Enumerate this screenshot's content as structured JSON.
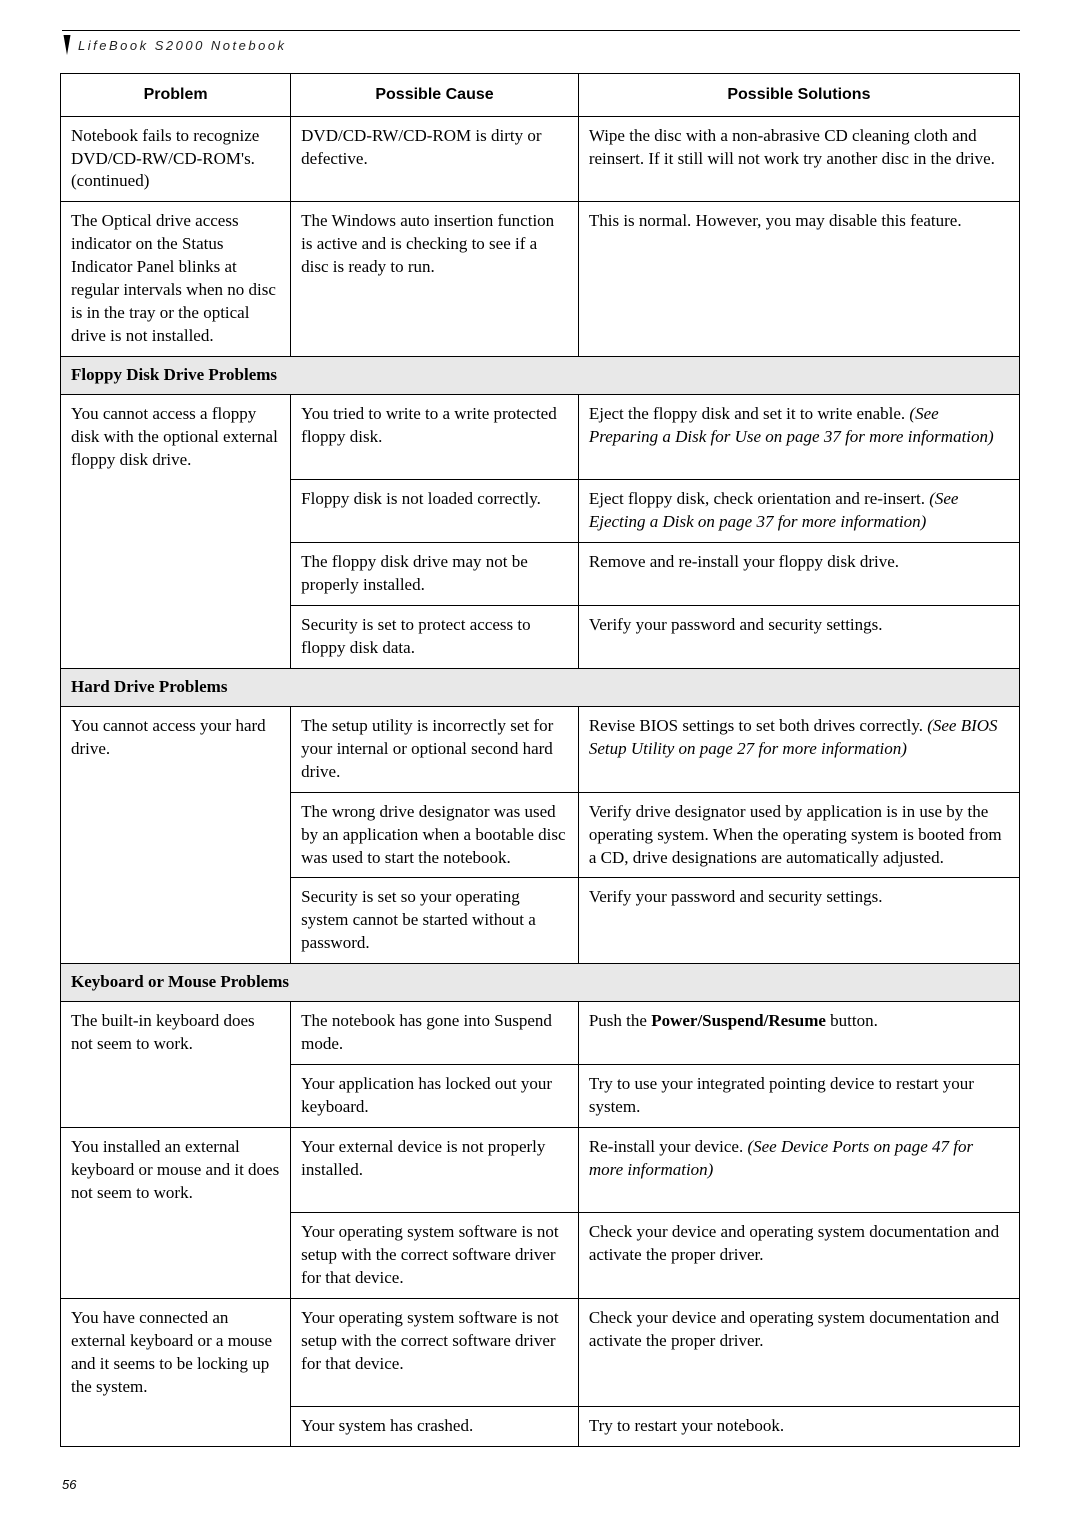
{
  "header": "LifeBook S2000 Notebook",
  "columns": [
    "Problem",
    "Possible Cause",
    "Possible Solutions"
  ],
  "rows": [
    {
      "problem": "Notebook fails to recognize DVD/CD-RW/CD-ROM's. (continued)",
      "cause": "DVD/CD-RW/CD-ROM is dirty or defective.",
      "solution": "Wipe the disc with a non-abrasive CD cleaning cloth and reinsert. If it still will not work try another disc in the drive."
    },
    {
      "problem": "The Optical drive access indicator on the Status Indicator Panel blinks at regular intervals when no disc is in the tray or the optical drive is not installed.",
      "cause": "The Windows auto insertion function is active and is checking to see if a disc is ready to run.",
      "solution": "This is normal. However, you may disable this feature."
    }
  ],
  "section_floppy": "Floppy Disk Drive Problems",
  "floppy_rows": {
    "problem": "You cannot access a floppy disk with the optional external floppy disk drive.",
    "r1": {
      "cause": "You tried to write to a write protected floppy disk.",
      "solution_pre": "Eject the floppy disk and set it to write enable. ",
      "solution_ital": "(See Preparing a Disk for Use on page 37 for more information)"
    },
    "r2": {
      "cause": "Floppy disk is not loaded correctly.",
      "solution_pre": "Eject floppy disk, check orientation and re-insert. ",
      "solution_ital": "(See Ejecting a Disk on page 37 for more information)"
    },
    "r3": {
      "cause": "The floppy disk drive may not be properly installed.",
      "solution": "Remove and re-install your floppy disk drive."
    },
    "r4": {
      "cause": "Security is set to protect access to floppy disk data.",
      "solution": "Verify your password and security settings."
    }
  },
  "section_hard": "Hard Drive Problems",
  "hard_rows": {
    "problem": "You cannot access your hard drive.",
    "r1": {
      "cause": "The setup utility is incorrectly set for your internal or optional second hard drive.",
      "solution_pre": "Revise BIOS settings to set both drives correctly. ",
      "solution_ital": "(See BIOS Setup Utility on page 27 for more information)"
    },
    "r2": {
      "cause": "The wrong drive designator was used by an application when a bootable disc was used to start the notebook.",
      "solution": "Verify drive designator used by application is in use by the operating system. When the operating system is booted from a CD, drive designations are automatically adjusted."
    },
    "r3": {
      "cause": "Security is set so your operating system cannot be started without a password.",
      "solution": "Verify your password and security settings."
    }
  },
  "section_keyboard": "Keyboard or Mouse Problems",
  "kb_rows": {
    "p1": "The built-in keyboard does not seem to work.",
    "r1": {
      "cause": "The notebook has gone into Suspend mode.",
      "solution_pre": "Push the ",
      "solution_bold": "Power/Suspend/Resume",
      "solution_post": " button."
    },
    "r2": {
      "cause": "Your application has locked out your keyboard.",
      "solution": "Try to use your integrated pointing device to restart your system."
    },
    "p2": "You installed an external keyboard or mouse and it does not seem to work.",
    "r3": {
      "cause": "Your external device is not properly installed.",
      "solution_pre": "Re-install your device. ",
      "solution_ital": "(See Device Ports on page 47 for more information)"
    },
    "r4": {
      "cause": "Your operating system software is not setup with the correct software driver for that device.",
      "solution": "Check your device and operating system documentation and activate the proper driver."
    },
    "p3": "You have connected an external keyboard or a mouse and it seems to be locking up the system.",
    "r5": {
      "cause": "Your operating system software is not setup with the correct software driver for that device.",
      "solution": "Check your device and operating system documentation and activate the proper driver."
    },
    "r6": {
      "cause": "Your system has crashed.",
      "solution": "Try to restart your notebook."
    }
  },
  "page_number": "56"
}
